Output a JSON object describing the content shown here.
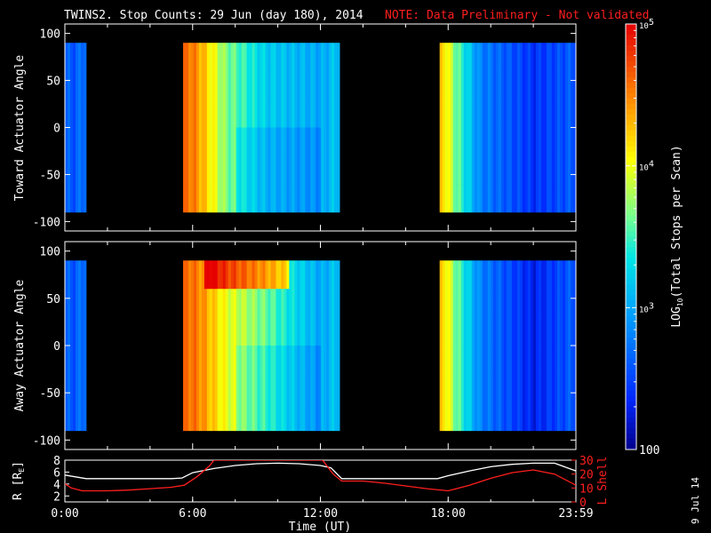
{
  "title": "TWINS2. Stop Counts: 29 Jun (day 180), 2014",
  "note": "NOTE: Data Preliminary - Not validated",
  "date_stamp": "9 Jul 14",
  "colors": {
    "background": "#000000",
    "axis": "#ffffff",
    "note": "#ff1e1e",
    "r_line": "#ffffff",
    "lshell_line": "#ff1e1e"
  },
  "chart_data": [
    {
      "type": "heatmap",
      "panel": "top",
      "ylabel": "Toward Actuator Angle",
      "ylim": [
        -110,
        110
      ],
      "yticks": [
        "100",
        "50",
        "0",
        "-50",
        "-100"
      ],
      "xlim_hours": [
        0,
        24
      ],
      "data_coverage_hours": [
        [
          0,
          1
        ],
        [
          5.55,
          12.9
        ],
        [
          17.6,
          24
        ]
      ],
      "angle_range": [
        -90,
        90
      ],
      "summary_log10_counts": [
        {
          "t": 0.5,
          "v": 2.6
        },
        {
          "t": 5.8,
          "v": 4.6
        },
        {
          "t": 6.3,
          "v": 4.4
        },
        {
          "t": 7.5,
          "v": 3.7
        },
        {
          "t": 9.5,
          "v": 3.2
        },
        {
          "t": 12.0,
          "v": 3.0
        },
        {
          "t": 17.8,
          "v": 4.2
        },
        {
          "t": 18.3,
          "v": 3.7
        },
        {
          "t": 19.5,
          "v": 2.8
        },
        {
          "t": 22.0,
          "v": 2.4
        },
        {
          "t": 23.8,
          "v": 2.6
        }
      ]
    },
    {
      "type": "heatmap",
      "panel": "middle",
      "ylabel": "Away Actuator Angle",
      "ylim": [
        -110,
        110
      ],
      "yticks": [
        "100",
        "50",
        "0",
        "-50",
        "-100"
      ],
      "xlim_hours": [
        0,
        24
      ],
      "data_coverage_hours": [
        [
          0,
          1
        ],
        [
          5.55,
          12.9
        ],
        [
          17.6,
          24
        ]
      ],
      "angle_range": [
        -90,
        90
      ],
      "summary_log10_counts": [
        {
          "t": 0.5,
          "v": 2.6
        },
        {
          "t": 5.8,
          "v": 4.6
        },
        {
          "t": 6.3,
          "v": 4.5
        },
        {
          "t": 7.5,
          "v": 4.0
        },
        {
          "t": 9.5,
          "v": 3.6
        },
        {
          "t": 12.0,
          "v": 3.0
        },
        {
          "t": 17.8,
          "v": 4.2
        },
        {
          "t": 18.3,
          "v": 3.7
        },
        {
          "t": 19.5,
          "v": 2.8
        },
        {
          "t": 22.0,
          "v": 2.3
        },
        {
          "t": 23.8,
          "v": 2.6
        }
      ]
    },
    {
      "type": "line",
      "panel": "bottom",
      "xlabel": "Time (UT)",
      "xticks": [
        "0:00",
        "6:00",
        "12:00",
        "18:00",
        "23:59"
      ],
      "xlim_hours": [
        0,
        24
      ],
      "y_left": {
        "label": "R [R",
        "label_sub": "E",
        "label_close": "]",
        "ticks": [
          "8",
          "6",
          "4",
          "2"
        ],
        "ylim": [
          1,
          8
        ]
      },
      "y_right": {
        "label": "L Shell",
        "ticks": [
          "30",
          "20",
          "10",
          "0"
        ],
        "ylim": [
          0,
          30
        ]
      },
      "series": [
        {
          "name": "R [RE]",
          "axis": "left",
          "x": [
            0,
            0.5,
            1,
            2,
            3,
            4,
            5,
            5.5,
            6,
            7,
            8,
            9,
            10,
            11,
            12,
            12.5,
            13,
            14,
            15,
            16,
            17,
            17.5,
            18,
            19,
            20,
            21,
            22,
            23,
            24
          ],
          "y": [
            5.5,
            5.2,
            4.9,
            4.9,
            4.9,
            4.9,
            4.9,
            5.0,
            5.9,
            6.6,
            7.1,
            7.4,
            7.5,
            7.4,
            7.1,
            6.7,
            4.9,
            4.9,
            4.9,
            4.9,
            4.9,
            4.9,
            5.4,
            6.2,
            6.9,
            7.3,
            7.5,
            7.5,
            6.2
          ]
        },
        {
          "name": "L Shell",
          "axis": "right",
          "x": [
            0,
            0.3,
            0.8,
            2,
            3,
            4,
            5,
            5.6,
            6.2,
            6.8,
            7.0,
            12.1,
            12.6,
            13,
            14,
            15,
            16,
            17,
            18,
            19,
            20,
            21,
            22,
            23,
            24
          ],
          "y": [
            13,
            10,
            8,
            8,
            8.5,
            9.5,
            10.5,
            12,
            18,
            26,
            30,
            30,
            20,
            15,
            15,
            13.5,
            11.5,
            9.5,
            8,
            12,
            17,
            21,
            23,
            20,
            12
          ]
        }
      ]
    },
    {
      "type": "heatmap",
      "panel": "colorbar",
      "label": "LOG",
      "label_sub": "10",
      "label_rest": "(Total Stops per Scan)",
      "scale": "log",
      "range": [
        100,
        100000
      ],
      "ticks": [
        {
          "base": "10",
          "exp": "5",
          "value": 100000
        },
        {
          "base": "10",
          "exp": "4",
          "value": 10000
        },
        {
          "base": "10",
          "exp": "3",
          "value": 1000
        },
        {
          "plain": "100",
          "value": 100
        }
      ]
    }
  ]
}
